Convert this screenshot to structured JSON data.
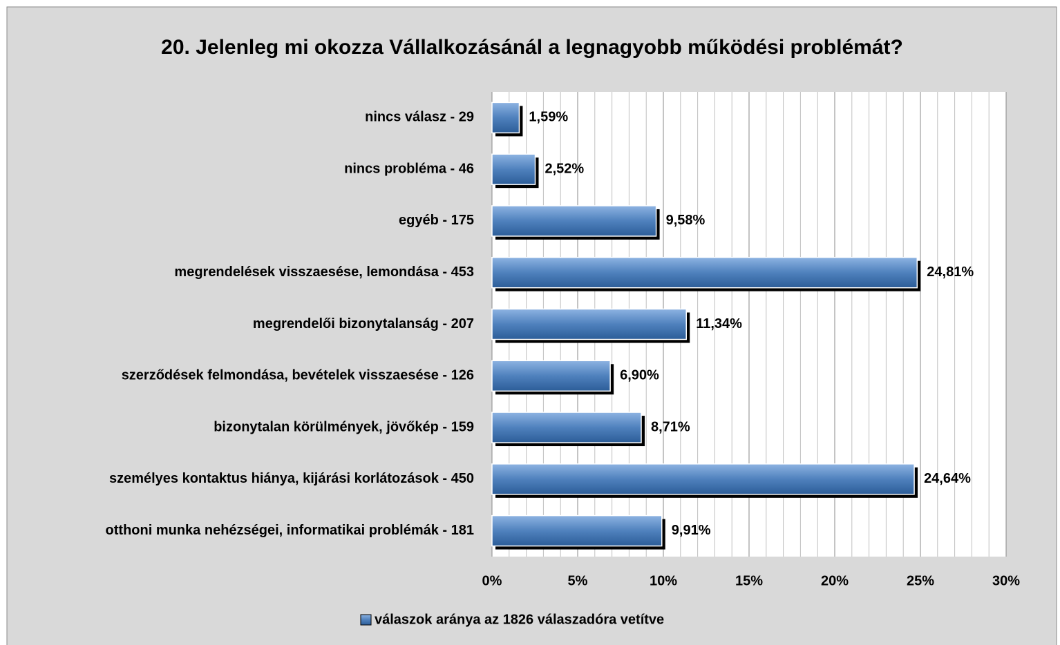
{
  "chart_data": {
    "type": "barh",
    "title": "20. Jelenleg mi okozza Vállalkozásánál a legnagyobb működési problémát?",
    "categories": [
      "nincs válasz - 29",
      "nincs probléma - 46",
      "egyéb - 175",
      "megrendelések visszaesése, lemondása - 453",
      "megrendelői bizonytalanság - 207",
      "szerződések felmondása, bevételek visszaesése - 126",
      "bizonytalan körülmények, jövőkép - 159",
      "személyes kontaktus hiánya, kijárási korlátozások - 450",
      "otthoni munka nehézségei, informatikai problémák - 181"
    ],
    "series": [
      {
        "name": "válaszok aránya az 1826 válaszadóra vetítve",
        "color": "#4f81bd",
        "values": [
          1.59,
          2.52,
          9.58,
          24.81,
          11.34,
          6.9,
          8.71,
          24.64,
          9.91
        ],
        "value_labels": [
          "1,59%",
          "2,52%",
          "9,58%",
          "24,81%",
          "11,34%",
          "6,90%",
          "8,71%",
          "24,64%",
          "9,91%"
        ]
      }
    ],
    "xlim": [
      0,
      30
    ],
    "xticks": [
      {
        "value": 0,
        "label": "0%"
      },
      {
        "value": 5,
        "label": "5%"
      },
      {
        "value": 10,
        "label": "10%"
      },
      {
        "value": 15,
        "label": "15%"
      },
      {
        "value": 20,
        "label": "20%"
      },
      {
        "value": 25,
        "label": "25%"
      },
      {
        "value": 30,
        "label": "30%"
      }
    ],
    "xticks_minor": [
      1,
      2,
      3,
      4,
      6,
      7,
      8,
      9,
      11,
      12,
      13,
      14,
      16,
      17,
      18,
      19,
      21,
      22,
      23,
      24,
      26,
      27,
      28,
      29
    ],
    "grid": true,
    "legend": "bottom"
  }
}
